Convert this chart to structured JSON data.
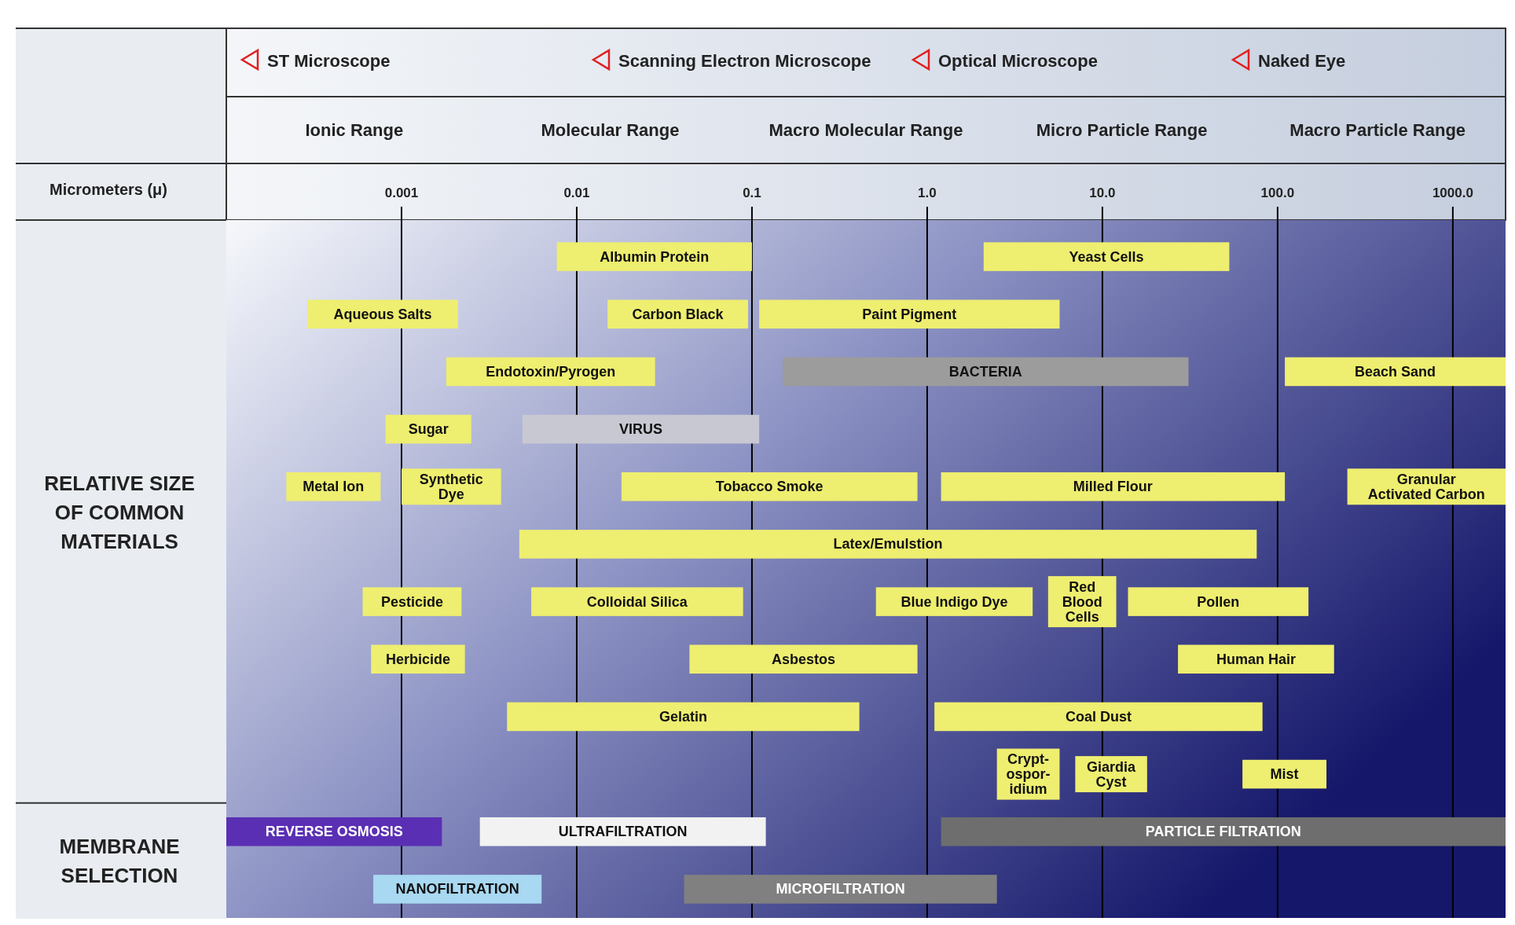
{
  "chart_data": [
    {
      "type": "bar",
      "orientation": "horizontal",
      "log": "x",
      "grid": "x",
      "xlabel": "Micrometers (μ)",
      "ylabel": "RELATIVE SIZE OF COMMON MATERIALS",
      "xlim": [
        0.0001,
        2000
      ],
      "xticks": [
        0.001,
        0.01,
        0.1,
        {
          "value": 1,
          "label": "1.0"
        },
        {
          "value": 10,
          "label": "10.0"
        },
        {
          "value": 100,
          "label": "100.0"
        },
        {
          "value": 1000,
          "label": "1000.0"
        }
      ],
      "annotations": [
        "ST Microscope",
        "Scanning Electron Microscope",
        "Optical Microscope",
        "Naked Eye",
        "Ionic Range",
        "Molecular Range",
        "Macro Molecular Range",
        "Micro Particle Range",
        "Macro Particle Range",
        "MEMBRANE SELECTION"
      ],
      "categories": [
        null,
        null,
        null,
        null,
        null,
        null,
        null,
        null,
        null,
        null,
        null,
        null
      ],
      "series": [
        {
          "name": "Albumin Protein",
          "color": "#eeee70",
          "values": [
            0.0923,
            null,
            null,
            null,
            null,
            null,
            null,
            null,
            null,
            null,
            null,
            null
          ],
          "base": [
            0.0077,
            null,
            null,
            null,
            null,
            null,
            null,
            null,
            null,
            null,
            null,
            null
          ]
        },
        {
          "name": "Yeast Cells",
          "color": "#eeee70",
          "values": [
            50.9,
            null,
            null,
            null,
            null,
            null,
            null,
            null,
            null,
            null,
            null,
            null
          ],
          "base": [
            2.1,
            null,
            null,
            null,
            null,
            null,
            null,
            null,
            null,
            null,
            null,
            null
          ]
        },
        {
          "name": "Aqueous Salts",
          "color": "#eeee70",
          "values": [
            null,
            0.00181,
            null,
            null,
            null,
            null,
            null,
            null,
            null,
            null,
            null,
            null
          ],
          "base": [
            null,
            0.00029,
            null,
            null,
            null,
            null,
            null,
            null,
            null,
            null,
            null,
            null
          ]
        },
        {
          "name": "Carbon Black",
          "color": "#eeee70",
          "values": [
            null,
            0.08,
            null,
            null,
            null,
            null,
            null,
            null,
            null,
            null,
            null,
            null
          ],
          "base": [
            null,
            0.015,
            null,
            null,
            null,
            null,
            null,
            null,
            null,
            null,
            null,
            null
          ]
        },
        {
          "name": "Paint Pigment",
          "color": "#eeee70",
          "values": [
            null,
            5.59,
            null,
            null,
            null,
            null,
            null,
            null,
            null,
            null,
            null,
            null
          ],
          "base": [
            null,
            0.11,
            null,
            null,
            null,
            null,
            null,
            null,
            null,
            null,
            null,
            null
          ]
        },
        {
          "name": "Endotoxin/Pyrogen",
          "color": "#eeee70",
          "values": [
            null,
            null,
            0.0262,
            null,
            null,
            null,
            null,
            null,
            null,
            null,
            null,
            null
          ],
          "base": [
            null,
            null,
            0.0018,
            null,
            null,
            null,
            null,
            null,
            null,
            null,
            null,
            null
          ]
        },
        {
          "name": "BACTERIA",
          "color": "#9c9c9c",
          "values": [
            null,
            null,
            30.85,
            null,
            null,
            null,
            null,
            null,
            null,
            null,
            null,
            null
          ],
          "base": [
            null,
            null,
            0.15,
            null,
            null,
            null,
            null,
            null,
            null,
            null,
            null,
            null
          ]
        },
        {
          "name": "Beach Sand",
          "color": "#eeee70",
          "values": [
            null,
            null,
            1890,
            null,
            null,
            null,
            null,
            null,
            null,
            null,
            null,
            null
          ],
          "base": [
            null,
            null,
            110,
            null,
            null,
            null,
            null,
            null,
            null,
            null,
            null,
            null
          ]
        },
        {
          "name": "Sugar",
          "color": "#eeee70",
          "values": [
            null,
            null,
            null,
            0.00169,
            null,
            null,
            null,
            null,
            null,
            null,
            null,
            null
          ],
          "base": [
            null,
            null,
            null,
            0.00081,
            null,
            null,
            null,
            null,
            null,
            null,
            null,
            null
          ]
        },
        {
          "name": "VIRUS",
          "color": "#c8c8d2",
          "values": [
            null,
            null,
            null,
            0.1051,
            null,
            null,
            null,
            null,
            null,
            null,
            null,
            null
          ],
          "base": [
            null,
            null,
            null,
            0.0049,
            null,
            null,
            null,
            null,
            null,
            null,
            null,
            null
          ]
        },
        {
          "name": "Metal Ion",
          "color": "#eeee70",
          "values": [
            null,
            null,
            null,
            null,
            0.00054,
            null,
            null,
            null,
            null,
            null,
            null,
            null
          ],
          "base": [
            null,
            null,
            null,
            null,
            0.00022,
            null,
            null,
            null,
            null,
            null,
            null,
            null
          ]
        },
        {
          "name": "Synthetic Dye",
          "color": "#eeee70",
          "values": [
            null,
            null,
            null,
            null,
            0.0027,
            null,
            null,
            null,
            null,
            null,
            null,
            null
          ],
          "base": [
            null,
            null,
            null,
            null,
            0.001,
            null,
            null,
            null,
            null,
            null,
            null,
            null
          ]
        },
        {
          "name": "Tobacco Smoke",
          "color": "#eeee70",
          "values": [
            null,
            null,
            null,
            null,
            0.862,
            null,
            null,
            null,
            null,
            null,
            null,
            null
          ],
          "base": [
            null,
            null,
            null,
            null,
            0.018,
            null,
            null,
            null,
            null,
            null,
            null,
            null
          ]
        },
        {
          "name": "Milled Flour",
          "color": "#eeee70",
          "values": [
            null,
            null,
            null,
            null,
            108.8,
            null,
            null,
            null,
            null,
            null,
            null,
            null
          ],
          "base": [
            null,
            null,
            null,
            null,
            1.2,
            null,
            null,
            null,
            null,
            null,
            null,
            null
          ]
        },
        {
          "name": "Granular Activated Carbon",
          "color": "#eeee70",
          "values": [
            null,
            null,
            null,
            null,
            1750,
            null,
            null,
            null,
            null,
            null,
            null,
            null
          ],
          "base": [
            null,
            null,
            null,
            null,
            250,
            null,
            null,
            null,
            null,
            null,
            null,
            null
          ]
        },
        {
          "name": "Latex/Emulstion",
          "color": "#eeee70",
          "values": [
            null,
            null,
            null,
            null,
            null,
            75.9953,
            null,
            null,
            null,
            null,
            null,
            null
          ],
          "base": [
            null,
            null,
            null,
            null,
            null,
            0.0047,
            null,
            null,
            null,
            null,
            null,
            null
          ]
        },
        {
          "name": "Pesticide",
          "color": "#eeee70",
          "values": [
            null,
            null,
            null,
            null,
            null,
            null,
            0.0016,
            null,
            null,
            null,
            null,
            null
          ],
          "base": [
            null,
            null,
            null,
            null,
            null,
            null,
            0.0006,
            null,
            null,
            null,
            null,
            null
          ]
        },
        {
          "name": "Colloidal Silica",
          "color": "#eeee70",
          "values": [
            null,
            null,
            null,
            null,
            null,
            null,
            0.0835,
            null,
            null,
            null,
            null,
            null
          ],
          "base": [
            null,
            null,
            null,
            null,
            null,
            null,
            0.0055,
            null,
            null,
            null,
            null,
            null
          ]
        },
        {
          "name": "Blue Indigo Dye",
          "color": "#eeee70",
          "values": [
            null,
            null,
            null,
            null,
            null,
            null,
            3.49,
            null,
            null,
            null,
            null,
            null
          ],
          "base": [
            null,
            null,
            null,
            null,
            null,
            null,
            0.51,
            null,
            null,
            null,
            null,
            null
          ]
        },
        {
          "name": "Red Blood Cells",
          "color": "#eeee70",
          "values": [
            null,
            null,
            null,
            null,
            null,
            null,
            7.1,
            null,
            null,
            null,
            null,
            null
          ],
          "base": [
            null,
            null,
            null,
            null,
            null,
            null,
            4.9,
            null,
            null,
            null,
            null,
            null
          ]
        },
        {
          "name": "Pollen",
          "color": "#eeee70",
          "values": [
            null,
            null,
            null,
            null,
            null,
            null,
            136,
            null,
            null,
            null,
            null,
            null
          ],
          "base": [
            null,
            null,
            null,
            null,
            null,
            null,
            14,
            null,
            null,
            null,
            null,
            null
          ]
        },
        {
          "name": "Herbicide",
          "color": "#eeee70",
          "values": [
            null,
            null,
            null,
            null,
            null,
            null,
            null,
            0.00163,
            null,
            null,
            null,
            null
          ],
          "base": [
            null,
            null,
            null,
            null,
            null,
            null,
            null,
            0.00067,
            null,
            null,
            null,
            null
          ]
        },
        {
          "name": "Asbestos",
          "color": "#eeee70",
          "values": [
            null,
            null,
            null,
            null,
            null,
            null,
            null,
            0.836,
            null,
            null,
            null,
            null
          ],
          "base": [
            null,
            null,
            null,
            null,
            null,
            null,
            null,
            0.044,
            null,
            null,
            null,
            null
          ]
        },
        {
          "name": "Human Hair",
          "color": "#eeee70",
          "values": [
            null,
            null,
            null,
            null,
            null,
            null,
            null,
            183,
            null,
            null,
            null,
            null
          ],
          "base": [
            null,
            null,
            null,
            null,
            null,
            null,
            null,
            27,
            null,
            null,
            null,
            null
          ]
        },
        {
          "name": "Gelatin",
          "color": "#eeee70",
          "values": [
            null,
            null,
            null,
            null,
            null,
            null,
            null,
            null,
            0.406,
            null,
            null,
            null
          ],
          "base": [
            null,
            null,
            null,
            null,
            null,
            null,
            null,
            null,
            0.004,
            null,
            null,
            null
          ]
        },
        {
          "name": "Coal Dust",
          "color": "#eeee70",
          "values": [
            null,
            null,
            null,
            null,
            null,
            null,
            null,
            null,
            80.9,
            null,
            null,
            null
          ],
          "base": [
            null,
            null,
            null,
            null,
            null,
            null,
            null,
            null,
            1.1,
            null,
            null,
            null
          ]
        },
        {
          "name": "Crypt-ospor-idium",
          "color": "#eeee70",
          "values": [
            null,
            null,
            null,
            null,
            null,
            null,
            null,
            null,
            null,
            3.2,
            null,
            null
          ],
          "base": [
            null,
            null,
            null,
            null,
            null,
            null,
            null,
            null,
            null,
            2.5,
            null,
            null
          ]
        },
        {
          "name": "Giardia Cyst",
          "color": "#eeee70",
          "values": [
            null,
            null,
            null,
            null,
            null,
            null,
            null,
            null,
            null,
            11,
            null,
            null
          ],
          "base": [
            null,
            null,
            null,
            null,
            null,
            null,
            null,
            null,
            null,
            7,
            null,
            null
          ]
        },
        {
          "name": "Mist",
          "color": "#eeee70",
          "values": [
            null,
            null,
            null,
            null,
            null,
            null,
            null,
            null,
            null,
            127,
            null,
            null
          ],
          "base": [
            null,
            null,
            null,
            null,
            null,
            null,
            null,
            null,
            null,
            63,
            null,
            null
          ]
        },
        {
          "name": "REVERSE OSMOSIS",
          "color": "#5a2fb4",
          "values": [
            null,
            null,
            null,
            null,
            null,
            null,
            null,
            null,
            null,
            null,
            0.0016,
            null
          ],
          "base": [
            null,
            null,
            null,
            null,
            null,
            null,
            null,
            null,
            null,
            null,
            0.0001,
            null
          ]
        },
        {
          "name": "ULTRAFILTRATION",
          "color": "#f2f2f2",
          "values": [
            null,
            null,
            null,
            null,
            null,
            null,
            null,
            null,
            null,
            null,
            0.1172,
            null
          ],
          "base": [
            null,
            null,
            null,
            null,
            null,
            null,
            null,
            null,
            null,
            null,
            0.0028,
            null
          ]
        },
        {
          "name": "PARTICLE FILTRATION",
          "color": "#6e6e6e",
          "values": [
            null,
            null,
            null,
            null,
            null,
            null,
            null,
            null,
            null,
            null,
            1998.8,
            null
          ],
          "base": [
            null,
            null,
            null,
            null,
            null,
            null,
            null,
            null,
            null,
            null,
            1.2,
            null
          ]
        },
        {
          "name": "NANOFILTRATION",
          "color": "#a8d8f2",
          "values": [
            null,
            null,
            null,
            null,
            null,
            null,
            null,
            null,
            null,
            null,
            null,
            0.00561
          ],
          "base": [
            null,
            null,
            null,
            null,
            null,
            null,
            null,
            null,
            null,
            null,
            null,
            0.00069
          ]
        },
        {
          "name": "MICROFILTRATION",
          "color": "#808080",
          "values": [
            null,
            null,
            null,
            null,
            null,
            null,
            null,
            null,
            null,
            null,
            null,
            2.459
          ],
          "base": [
            null,
            null,
            null,
            null,
            null,
            null,
            null,
            null,
            null,
            null,
            null,
            0.041
          ]
        }
      ]
    }
  ]
}
